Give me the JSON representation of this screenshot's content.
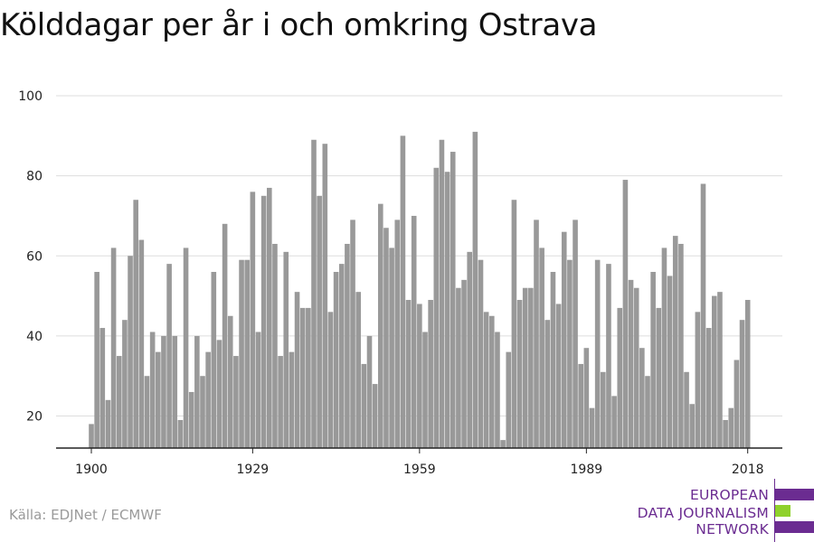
{
  "title": "Kölddagar per år i och omkring Ostrava",
  "source": "Källa: EDJNet / ECMWF",
  "logo": {
    "lines": [
      "EUROPEAN",
      "DATA JOURNALISM",
      "NETWORK"
    ],
    "colors": {
      "purple": "#6b2c91",
      "green": "#8fd12c"
    }
  },
  "colors": {
    "bar": "#999999",
    "grid": "#dddddd",
    "axis": "#222222"
  },
  "chart_data": {
    "type": "bar",
    "title": "Kölddagar per år i och omkring Ostrava",
    "xlabel": "",
    "ylabel": "",
    "x": [
      1900,
      1901,
      1902,
      1903,
      1904,
      1905,
      1906,
      1907,
      1908,
      1909,
      1910,
      1911,
      1912,
      1913,
      1914,
      1915,
      1916,
      1917,
      1918,
      1919,
      1920,
      1921,
      1922,
      1923,
      1924,
      1925,
      1926,
      1927,
      1928,
      1929,
      1930,
      1931,
      1932,
      1933,
      1934,
      1935,
      1936,
      1937,
      1938,
      1939,
      1940,
      1941,
      1942,
      1943,
      1944,
      1945,
      1946,
      1947,
      1948,
      1949,
      1950,
      1951,
      1952,
      1953,
      1954,
      1955,
      1956,
      1957,
      1958,
      1959,
      1960,
      1961,
      1962,
      1963,
      1964,
      1965,
      1966,
      1967,
      1968,
      1969,
      1970,
      1971,
      1972,
      1973,
      1974,
      1975,
      1976,
      1977,
      1978,
      1979,
      1980,
      1981,
      1982,
      1983,
      1984,
      1985,
      1986,
      1987,
      1988,
      1989,
      1990,
      1991,
      1992,
      1993,
      1994,
      1995,
      1996,
      1997,
      1998,
      1999,
      2000,
      2001,
      2002,
      2003,
      2004,
      2005,
      2006,
      2007,
      2008,
      2009,
      2010,
      2011,
      2012,
      2013,
      2014,
      2015,
      2016,
      2017,
      2018
    ],
    "values": [
      18,
      56,
      42,
      24,
      62,
      35,
      44,
      60,
      74,
      64,
      30,
      41,
      36,
      40,
      58,
      40,
      19,
      62,
      26,
      40,
      30,
      36,
      56,
      39,
      68,
      45,
      35,
      59,
      59,
      76,
      41,
      75,
      77,
      63,
      35,
      61,
      36,
      51,
      47,
      47,
      89,
      75,
      88,
      46,
      56,
      58,
      63,
      69,
      51,
      33,
      40,
      28,
      73,
      67,
      62,
      69,
      90,
      49,
      70,
      48,
      41,
      49,
      82,
      89,
      81,
      86,
      52,
      54,
      61,
      91,
      59,
      46,
      45,
      41,
      14,
      36,
      74,
      49,
      52,
      52,
      69,
      62,
      44,
      56,
      48,
      66,
      59,
      69,
      33,
      37,
      22,
      59,
      31,
      58,
      25,
      47,
      79,
      54,
      52,
      37,
      30,
      56,
      47,
      62,
      55,
      65,
      63,
      31,
      23,
      46,
      78,
      42,
      50,
      51,
      19,
      22,
      34,
      44,
      49
    ],
    "tick_labels": [
      "1900",
      "1929",
      "1959",
      "1989",
      "2018"
    ],
    "y_ticks": [
      20,
      40,
      60,
      80,
      100
    ],
    "ylim": [
      12,
      100
    ],
    "grid": true,
    "legend": "none"
  }
}
